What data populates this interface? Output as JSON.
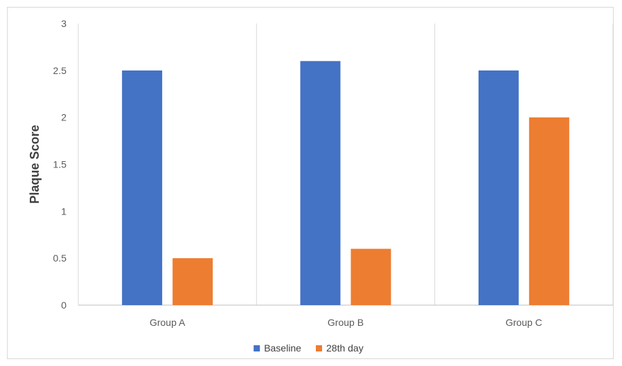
{
  "chart_data": {
    "type": "bar",
    "categories": [
      "Group A",
      "Group B",
      "Group C"
    ],
    "series": [
      {
        "name": "Baseline",
        "values": [
          2.5,
          2.6,
          2.5
        ],
        "color": "#4472C4"
      },
      {
        "name": "28th day",
        "values": [
          0.5,
          0.6,
          2.0
        ],
        "color": "#ED7D31"
      }
    ],
    "title": "",
    "xlabel": "",
    "ylabel": "Plaque Score",
    "ylim": [
      0,
      3
    ],
    "yticks": [
      "0",
      "0.5",
      "1",
      "1.5",
      "2",
      "2.5",
      "3"
    ],
    "grid": {
      "vertical_category_separators": true,
      "horizontal": false
    },
    "legend": "bottom-center"
  }
}
